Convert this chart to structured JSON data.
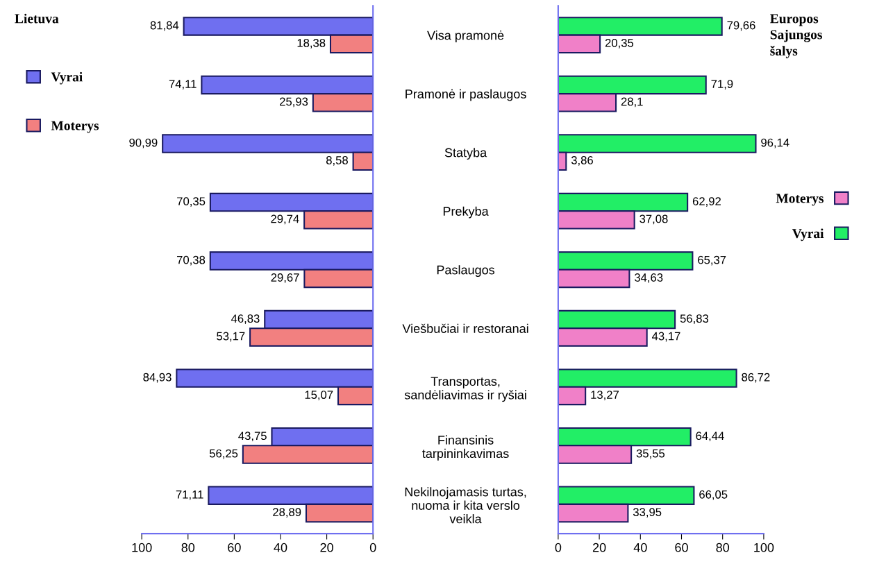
{
  "chart_data": [
    {
      "type": "bar",
      "orientation": "horizontal",
      "title": "Lietuva",
      "categories": [
        null,
        null,
        null,
        null,
        null,
        null,
        null,
        null,
        null
      ],
      "series": [
        {
          "name": "Vyrai",
          "color": "#6f6ff0",
          "values": [
            81.84,
            74.11,
            90.99,
            70.35,
            70.38,
            46.83,
            84.93,
            43.75,
            71.11
          ],
          "value_labels": [
            "81,84",
            "74,11",
            "90,99",
            "70,35",
            "70,38",
            "46,83",
            "84,93",
            "43,75",
            "71,11"
          ]
        },
        {
          "name": "Moterys",
          "color": "#f28080",
          "values": [
            18.38,
            25.93,
            8.58,
            29.74,
            29.67,
            53.17,
            15.07,
            56.25,
            28.89
          ],
          "value_labels": [
            "18,38",
            "25,93",
            "8,58",
            "29,74",
            "29,67",
            "53,17",
            "15,07",
            "56,25",
            "28,89"
          ]
        }
      ],
      "xlim": [
        100,
        0
      ],
      "xticks": [
        100,
        80,
        60,
        40,
        20,
        0
      ],
      "tick_labels": "x",
      "legend": "top left",
      "grid": false
    },
    {
      "type": "bar",
      "orientation": "horizontal",
      "title": "Europos\nSajungos\nšalys",
      "categories": [
        "Visa pramonė",
        "Pramonė ir paslaugos",
        "Statyba",
        "Prekyba",
        "Paslaugos",
        "Viešbučiai ir restoranai",
        "Transportas,\nsandėliavimas ir ryšiai",
        "Finansinis\ntarpininkavimas",
        "Nekilnojamasis turtas,\nnuoma ir kita verslo\nveikla"
      ],
      "series": [
        {
          "name": "Vyrai",
          "color": "#22ee66",
          "values": [
            79.66,
            71.9,
            96.14,
            62.92,
            65.37,
            56.83,
            86.72,
            64.44,
            66.05
          ],
          "value_labels": [
            "79,66",
            "71,9",
            "96,14",
            "62,92",
            "65,37",
            "56,83",
            "86,72",
            "64,44",
            "66,05"
          ]
        },
        {
          "name": "Moterys",
          "color": "#f080c8",
          "values": [
            20.35,
            28.1,
            3.86,
            37.08,
            34.63,
            43.17,
            13.27,
            35.55,
            33.95
          ],
          "value_labels": [
            "20,35",
            "28,1",
            "3,86",
            "37,08",
            "34,63",
            "43,17",
            "13,27",
            "35,55",
            "33,95"
          ]
        }
      ],
      "xlim": [
        0,
        100
      ],
      "xticks": [
        0,
        20,
        40,
        60,
        80,
        100
      ],
      "legend": "right",
      "grid": false
    }
  ]
}
